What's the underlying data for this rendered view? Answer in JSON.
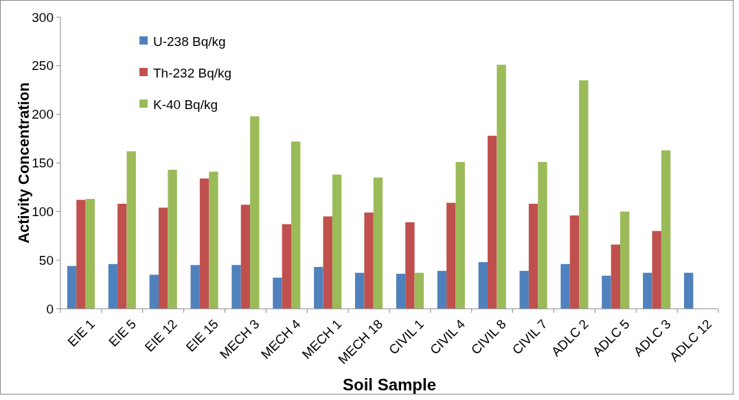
{
  "chart_data": {
    "type": "bar",
    "xlabel": "Soil Sample",
    "ylabel": "Activity Concentration",
    "categories": [
      "EIE 1",
      "EIE 5",
      "EIE 12",
      "EIE 15",
      "MECH 3",
      "MECH 4",
      "MECH 1",
      "MECH 18",
      "CIVIL 1",
      "CIVIL 4",
      "CIVIL 8",
      "CIVIL 7",
      "ADLC 2",
      "ADLC 5",
      "ADLC 3",
      "ADLC 12"
    ],
    "series": [
      {
        "name": "U-238 Bq/kg",
        "color": "#4f81bd",
        "values": [
          44,
          46,
          35,
          45,
          45,
          32,
          43,
          37,
          36,
          39,
          48,
          39,
          46,
          34,
          37,
          37
        ]
      },
      {
        "name": "Th-232 Bq/kg",
        "color": "#c0504d",
        "values": [
          112,
          108,
          104,
          134,
          107,
          87,
          95,
          99,
          89,
          109,
          178,
          108,
          96,
          66,
          80,
          null
        ]
      },
      {
        "name": "K-40 Bq/kg",
        "color": "#9bbb59",
        "values": [
          113,
          162,
          143,
          141,
          198,
          172,
          138,
          135,
          37,
          151,
          251,
          151,
          235,
          100,
          163,
          null
        ]
      }
    ],
    "ylim": [
      0,
      300
    ],
    "yticks": [
      0,
      50,
      100,
      150,
      200,
      250,
      300
    ],
    "legend": "top left"
  }
}
